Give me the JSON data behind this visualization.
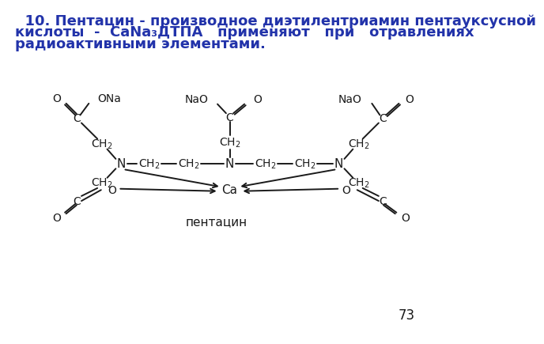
{
  "title_lines": [
    "  10. Пентацин - производное диэтилентриамин пентауксусной",
    "кислоты  -  СаNa₃ДТПА   применяют   при   отравлениях",
    "радиоактивными элементами."
  ],
  "title_color": "#2233AA",
  "title_fontsize": 13.0,
  "page_number": "73",
  "background_color": "#ffffff",
  "structure_label": "пентацин",
  "line_color": "#1a1a1a",
  "text_color": "#1a1a1a"
}
